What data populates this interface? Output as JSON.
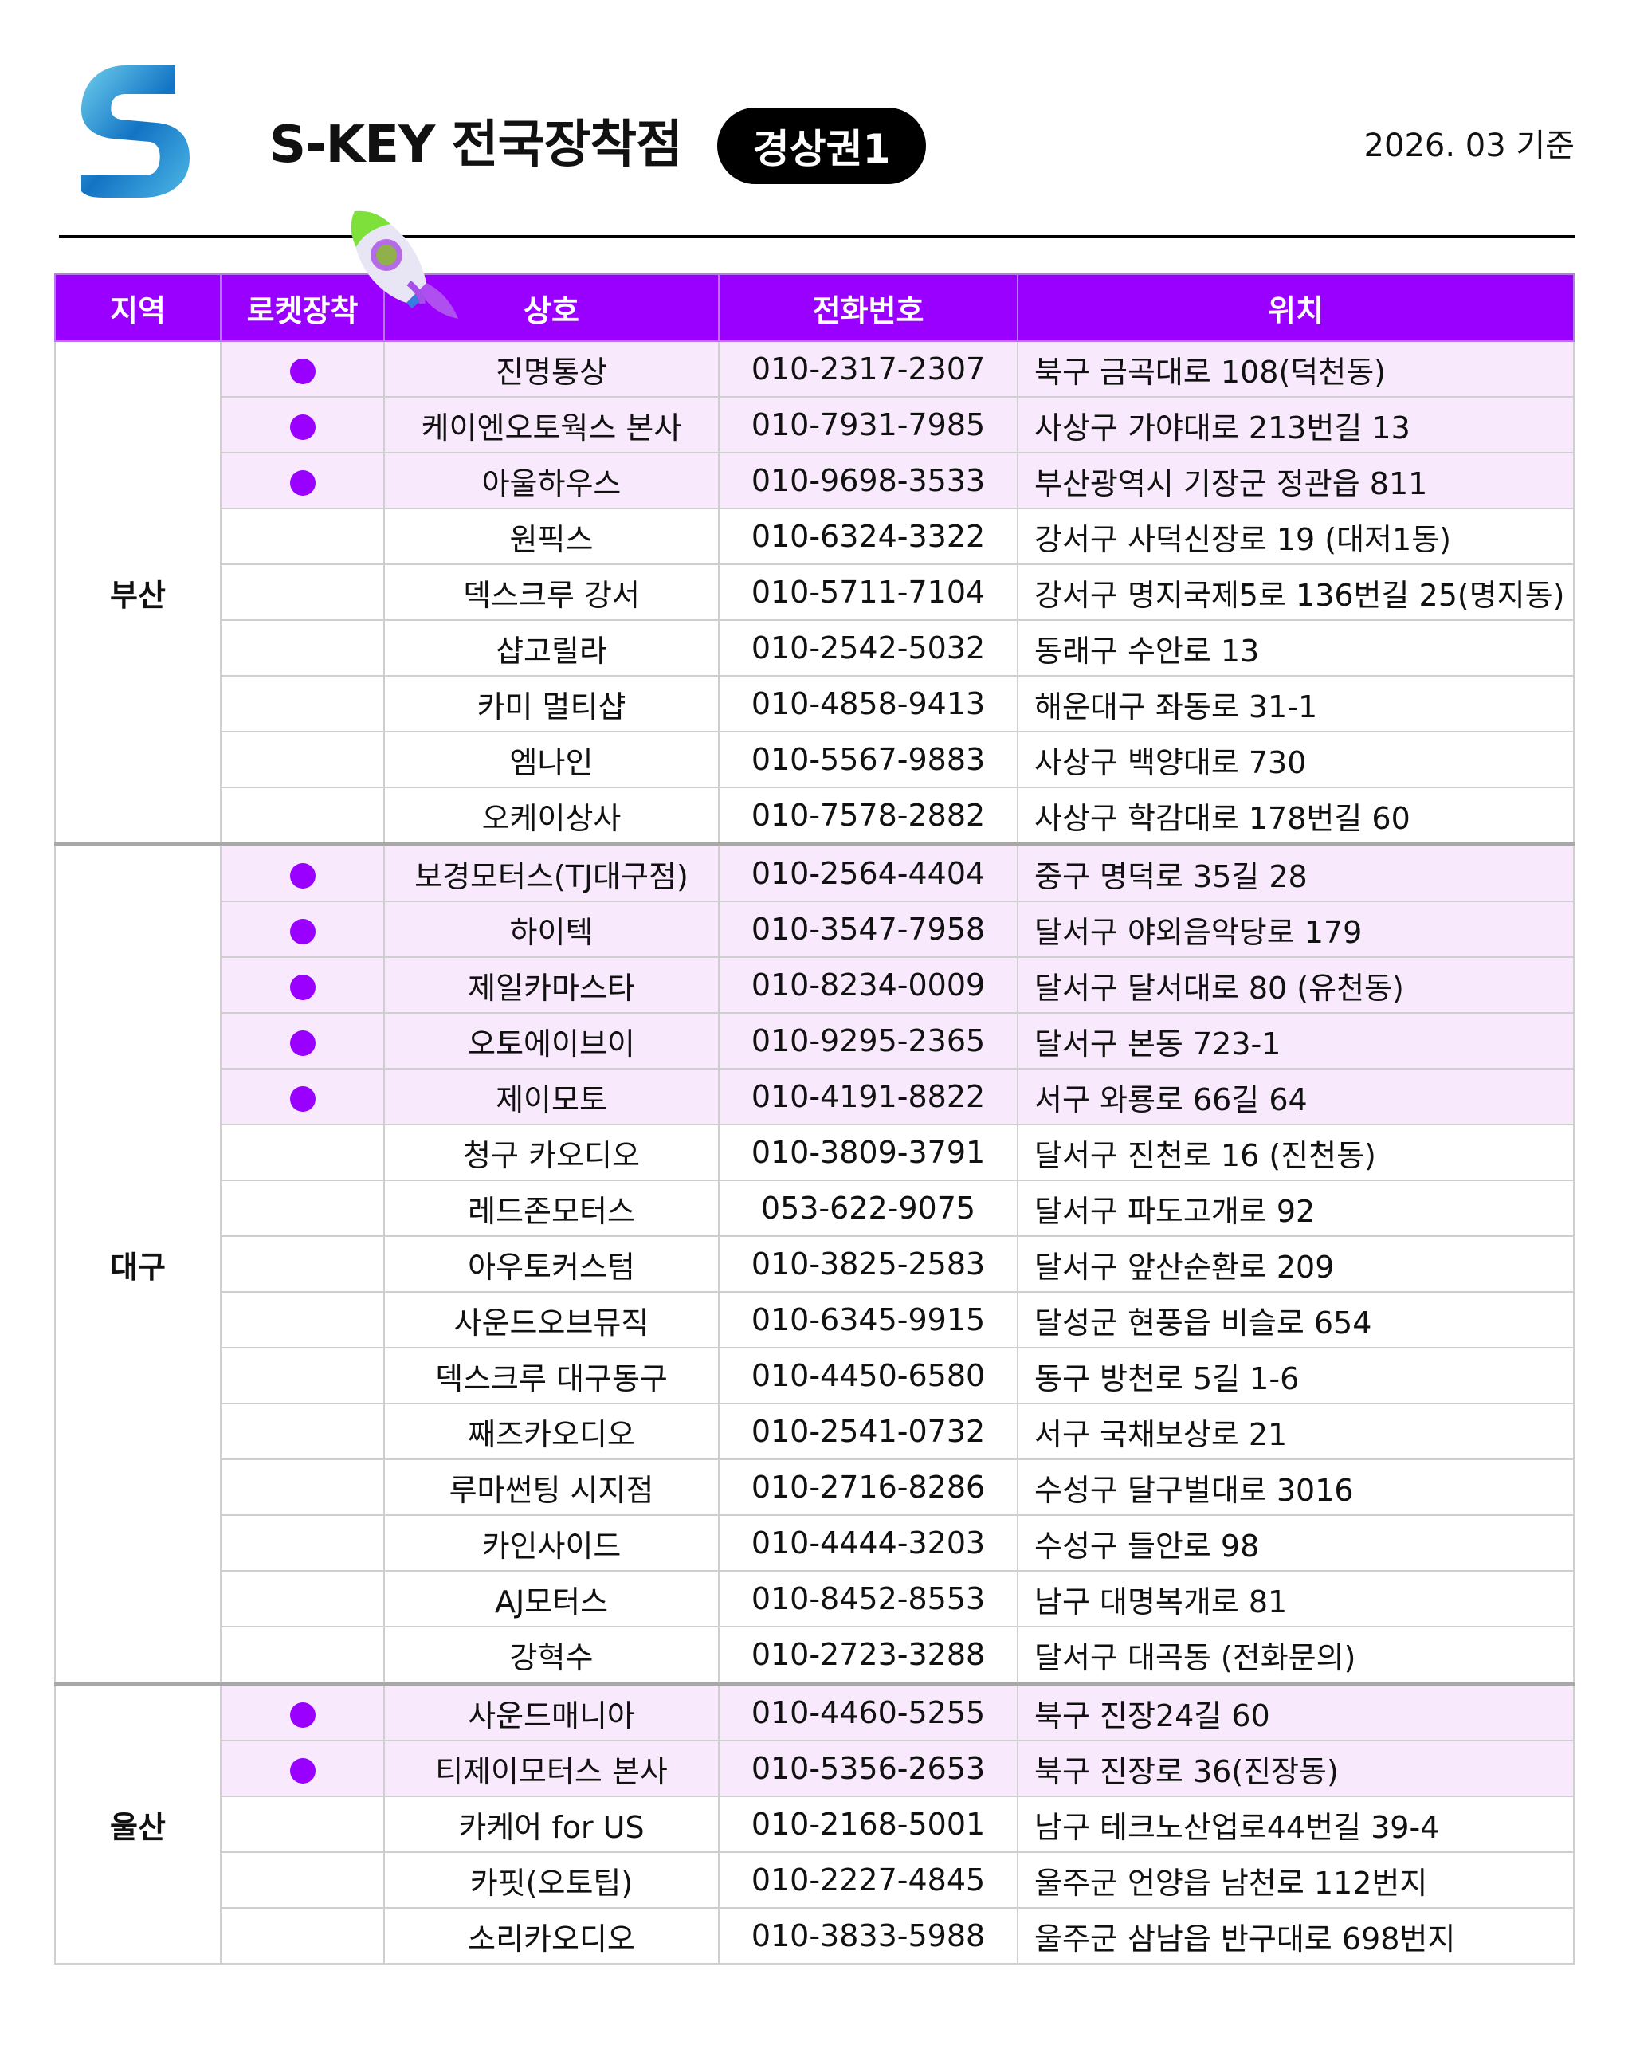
{
  "header": {
    "title": "S-KEY 전국장착점",
    "badge": "경상권1",
    "date": "2026. 03 기준",
    "logo_icon": "s-key-logo",
    "rocket_icon": "rocket-icon"
  },
  "colors": {
    "accent": "#9900ff",
    "rocket_row_bg": "#f8e9fc"
  },
  "table": {
    "columns": [
      "지역",
      "로켓장착",
      "상호",
      "전화번호",
      "위치"
    ],
    "groups": [
      {
        "region": "부산",
        "rows": [
          {
            "rocket": true,
            "name": "진명통상",
            "phone": "010-2317-2307",
            "location": "북구 금곡대로 108(덕천동)"
          },
          {
            "rocket": true,
            "name": "케이엔오토웍스 본사",
            "phone": "010-7931-7985",
            "location": "사상구 가야대로 213번길 13"
          },
          {
            "rocket": true,
            "name": "아울하우스",
            "phone": "010-9698-3533",
            "location": "부산광역시 기장군 정관읍 811"
          },
          {
            "rocket": false,
            "name": "원픽스",
            "phone": "010-6324-3322",
            "location": "강서구 사덕신장로 19 (대저1동)"
          },
          {
            "rocket": false,
            "name": "덱스크루 강서",
            "phone": "010-5711-7104",
            "location": "강서구 명지국제5로 136번길 25(명지동)"
          },
          {
            "rocket": false,
            "name": "샵고릴라",
            "phone": "010-2542-5032",
            "location": "동래구 수안로 13"
          },
          {
            "rocket": false,
            "name": "카미 멀티샵",
            "phone": "010-4858-9413",
            "location": "해운대구 좌동로 31-1"
          },
          {
            "rocket": false,
            "name": "엠나인",
            "phone": "010-5567-9883",
            "location": "사상구 백양대로 730"
          },
          {
            "rocket": false,
            "name": "오케이상사",
            "phone": "010-7578-2882",
            "location": "사상구 학감대로 178번길 60"
          }
        ]
      },
      {
        "region": "대구",
        "rows": [
          {
            "rocket": true,
            "name": "보경모터스(TJ대구점)",
            "phone": "010-2564-4404",
            "location": "중구 명덕로 35길 28"
          },
          {
            "rocket": true,
            "name": "하이텍",
            "phone": "010-3547-7958",
            "location": "달서구 야외음악당로 179"
          },
          {
            "rocket": true,
            "name": "제일카마스타",
            "phone": "010-8234-0009",
            "location": "달서구 달서대로 80 (유천동)"
          },
          {
            "rocket": true,
            "name": "오토에이브이",
            "phone": "010-9295-2365",
            "location": "달서구 본동 723-1"
          },
          {
            "rocket": true,
            "name": "제이모토",
            "phone": "010-4191-8822",
            "location": "서구 와룡로 66길 64"
          },
          {
            "rocket": false,
            "name": "청구 카오디오",
            "phone": "010-3809-3791",
            "location": "달서구 진천로 16 (진천동)"
          },
          {
            "rocket": false,
            "name": "레드존모터스",
            "phone": "053-622-9075",
            "location": "달서구 파도고개로 92"
          },
          {
            "rocket": false,
            "name": "아우토커스텀",
            "phone": "010-3825-2583",
            "location": "달서구 앞산순환로 209"
          },
          {
            "rocket": false,
            "name": "사운드오브뮤직",
            "phone": "010-6345-9915",
            "location": "달성군 현풍읍 비슬로 654"
          },
          {
            "rocket": false,
            "name": "덱스크루 대구동구",
            "phone": "010-4450-6580",
            "location": "동구 방천로 5길 1-6"
          },
          {
            "rocket": false,
            "name": "째즈카오디오",
            "phone": "010-2541-0732",
            "location": "서구 국채보상로 21"
          },
          {
            "rocket": false,
            "name": "루마썬팅 시지점",
            "phone": "010-2716-8286",
            "location": "수성구 달구벌대로 3016"
          },
          {
            "rocket": false,
            "name": "카인사이드",
            "phone": "010-4444-3203",
            "location": "수성구 들안로 98"
          },
          {
            "rocket": false,
            "name": "AJ모터스",
            "phone": "010-8452-8553",
            "location": "남구 대명복개로 81"
          },
          {
            "rocket": false,
            "name": "강혁수",
            "phone": "010-2723-3288",
            "location": "달서구 대곡동 (전화문의)"
          }
        ]
      },
      {
        "region": "울산",
        "rows": [
          {
            "rocket": true,
            "name": "사운드매니아",
            "phone": "010-4460-5255",
            "location": "북구 진장24길 60"
          },
          {
            "rocket": true,
            "name": "티제이모터스 본사",
            "phone": "010-5356-2653",
            "location": "북구 진장로 36(진장동)"
          },
          {
            "rocket": false,
            "name": "카케어 for US",
            "phone": "010-2168-5001",
            "location": "남구 테크노산업로44번길 39-4"
          },
          {
            "rocket": false,
            "name": "카핏(오토팁)",
            "phone": "010-2227-4845",
            "location": "울주군 언양읍 남천로 112번지"
          },
          {
            "rocket": false,
            "name": "소리카오디오",
            "phone": "010-3833-5988",
            "location": "울주군 삼남읍 반구대로 698번지"
          }
        ]
      }
    ]
  }
}
